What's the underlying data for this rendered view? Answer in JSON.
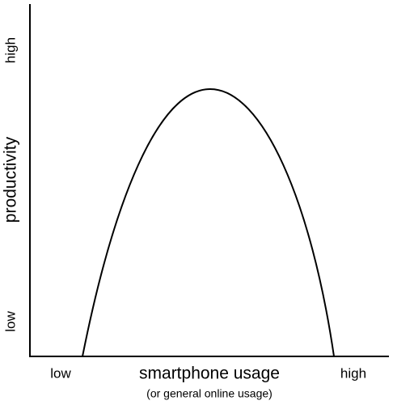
{
  "y_axis": {
    "label": "productivity",
    "low": "low",
    "high": "high"
  },
  "x_axis": {
    "label": "smartphone usage",
    "sublabel": "(or general online usage)",
    "low": "low",
    "high": "high"
  }
}
